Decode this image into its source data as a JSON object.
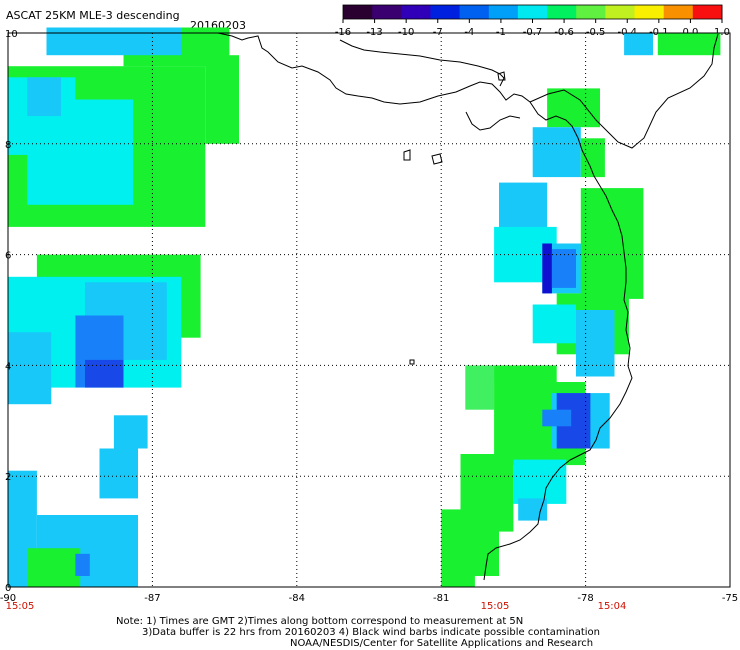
{
  "header": {
    "title": "ASCAT 25KM MLE-3 descending",
    "date": "20160203"
  },
  "colorbar": {
    "ticks": [
      "-16",
      "-13",
      "-10",
      "-7",
      "-4",
      "-1",
      "-0.7",
      "-0.6",
      "-0.5",
      "-0.4",
      "-0.1",
      "0.0",
      "1.0"
    ],
    "colors": [
      "#2a0030",
      "#3a0070",
      "#3000b8",
      "#0020e0",
      "#0060f0",
      "#00a0f8",
      "#00e8f0",
      "#00f060",
      "#60f040",
      "#c0f020",
      "#f8f000",
      "#f89000",
      "#f81010"
    ]
  },
  "axes": {
    "lon_labels": [
      "-90",
      "-87",
      "-84",
      "-81",
      "-78",
      "-75"
    ],
    "lat_labels": [
      "0",
      "2",
      "4",
      "6",
      "8",
      "10"
    ]
  },
  "times": [
    "15:05",
    "15:05",
    "15:04"
  ],
  "palette": {
    "green": "#18f030",
    "ltgreen": "#40f060",
    "cyan": "#00f0f0",
    "aqua": "#10e0e8",
    "sky": "#18c8f8",
    "blue": "#1880f8",
    "dblue": "#1848e8",
    "navy": "#1010d0"
  },
  "map_data": {
    "lon_range": [
      -90,
      -75
    ],
    "lat_range": [
      0,
      10
    ],
    "cell": 0.25,
    "blocks": [
      {
        "lon": [
          -87.6,
          -85.4
        ],
        "lat": [
          9.4,
          10.1
        ],
        "c": "green"
      },
      {
        "lon": [
          -89.2,
          -86.4
        ],
        "lat": [
          9.6,
          10.1
        ],
        "c": "sky"
      },
      {
        "lon": [
          -90.0,
          -85.9
        ],
        "lat": [
          6.5,
          9.4
        ],
        "c": "green"
      },
      {
        "lon": [
          -85.9,
          -85.2
        ],
        "lat": [
          8.0,
          9.6
        ],
        "c": "green"
      },
      {
        "lon": [
          -89.6,
          -87.4
        ],
        "lat": [
          6.9,
          8.8
        ],
        "c": "cyan"
      },
      {
        "lon": [
          -90.0,
          -88.6
        ],
        "lat": [
          7.8,
          9.2
        ],
        "c": "cyan"
      },
      {
        "lon": [
          -89.6,
          -88.9
        ],
        "lat": [
          8.5,
          9.2
        ],
        "c": "sky"
      },
      {
        "lon": [
          -89.4,
          -86.0
        ],
        "lat": [
          4.5,
          6.0
        ],
        "c": "green"
      },
      {
        "lon": [
          -90.0,
          -86.4
        ],
        "lat": [
          3.6,
          5.6
        ],
        "c": "cyan"
      },
      {
        "lon": [
          -88.4,
          -86.7
        ],
        "lat": [
          4.1,
          5.5
        ],
        "c": "sky"
      },
      {
        "lon": [
          -88.6,
          -87.6
        ],
        "lat": [
          3.6,
          4.9
        ],
        "c": "blue"
      },
      {
        "lon": [
          -88.4,
          -87.6
        ],
        "lat": [
          3.6,
          4.1
        ],
        "c": "dblue"
      },
      {
        "lon": [
          -90.0,
          -89.1
        ],
        "lat": [
          3.3,
          4.6
        ],
        "c": "sky"
      },
      {
        "lon": [
          -87.8,
          -87.1
        ],
        "lat": [
          2.5,
          3.1
        ],
        "c": "sky"
      },
      {
        "lon": [
          -88.1,
          -87.3
        ],
        "lat": [
          1.6,
          2.5
        ],
        "c": "sky"
      },
      {
        "lon": [
          -90.0,
          -89.4
        ],
        "lat": [
          0.0,
          2.1
        ],
        "c": "sky"
      },
      {
        "lon": [
          -89.4,
          -87.3
        ],
        "lat": [
          0.0,
          1.3
        ],
        "c": "sky"
      },
      {
        "lon": [
          -89.6,
          -88.5
        ],
        "lat": [
          0.0,
          0.7
        ],
        "c": "green"
      },
      {
        "lon": [
          -88.6,
          -88.3
        ],
        "lat": [
          0.2,
          0.6
        ],
        "c": "blue"
      },
      {
        "lon": [
          -78.8,
          -77.7
        ],
        "lat": [
          8.3,
          9.0
        ],
        "c": "green"
      },
      {
        "lon": [
          -79.1,
          -78.1
        ],
        "lat": [
          7.4,
          8.3
        ],
        "c": "sky"
      },
      {
        "lon": [
          -78.1,
          -77.6
        ],
        "lat": [
          7.4,
          8.1
        ],
        "c": "green"
      },
      {
        "lon": [
          -79.8,
          -78.8
        ],
        "lat": [
          6.3,
          7.3
        ],
        "c": "sky"
      },
      {
        "lon": [
          -79.9,
          -78.6
        ],
        "lat": [
          5.5,
          6.5
        ],
        "c": "cyan"
      },
      {
        "lon": [
          -78.9,
          -77.5
        ],
        "lat": [
          5.3,
          6.2
        ],
        "c": "sky"
      },
      {
        "lon": [
          -78.9,
          -78.7
        ],
        "lat": [
          5.3,
          6.2
        ],
        "c": "navy"
      },
      {
        "lon": [
          -78.7,
          -78.2
        ],
        "lat": [
          5.4,
          6.1
        ],
        "c": "blue"
      },
      {
        "lon": [
          -78.1,
          -76.8
        ],
        "lat": [
          5.2,
          7.2
        ],
        "c": "green"
      },
      {
        "lon": [
          -78.6,
          -77.1
        ],
        "lat": [
          4.2,
          5.3
        ],
        "c": "green"
      },
      {
        "lon": [
          -79.1,
          -78.2
        ],
        "lat": [
          4.4,
          5.1
        ],
        "c": "cyan"
      },
      {
        "lon": [
          -78.2,
          -77.4
        ],
        "lat": [
          3.8,
          5.0
        ],
        "c": "sky"
      },
      {
        "lon": [
          -80.0,
          -78.6
        ],
        "lat": [
          3.7,
          4.0
        ],
        "c": "green"
      },
      {
        "lon": [
          -80.5,
          -79.9
        ],
        "lat": [
          3.2,
          4.0
        ],
        "c": "ltgreen"
      },
      {
        "lon": [
          -79.9,
          -78.0
        ],
        "lat": [
          2.2,
          3.7
        ],
        "c": "green"
      },
      {
        "lon": [
          -78.7,
          -77.5
        ],
        "lat": [
          2.5,
          3.5
        ],
        "c": "sky"
      },
      {
        "lon": [
          -78.6,
          -77.9
        ],
        "lat": [
          2.5,
          3.5
        ],
        "c": "dblue"
      },
      {
        "lon": [
          -78.9,
          -78.3
        ],
        "lat": [
          2.9,
          3.2
        ],
        "c": "blue"
      },
      {
        "lon": [
          -80.6,
          -79.5
        ],
        "lat": [
          1.0,
          2.4
        ],
        "c": "green"
      },
      {
        "lon": [
          -79.5,
          -78.4
        ],
        "lat": [
          1.5,
          2.3
        ],
        "c": "cyan"
      },
      {
        "lon": [
          -79.4,
          -78.8
        ],
        "lat": [
          1.2,
          1.6
        ],
        "c": "sky"
      },
      {
        "lon": [
          -81.0,
          -80.3
        ],
        "lat": [
          0.0,
          1.4
        ],
        "c": "green"
      },
      {
        "lon": [
          -80.6,
          -79.8
        ],
        "lat": [
          0.2,
          1.1
        ],
        "c": "green"
      },
      {
        "lon": [
          -77.2,
          -76.6
        ],
        "lat": [
          9.6,
          10.0
        ],
        "c": "sky"
      },
      {
        "lon": [
          -76.5,
          -75.2
        ],
        "lat": [
          9.6,
          10.0
        ],
        "c": "green"
      }
    ]
  },
  "footnote": {
    "line1": "Note: 1) Times are GMT 2)Times along bottom correspond to measurement at 5N",
    "line2": "3)Data buffer is 22 hrs from 20160203 4) Black wind barbs indicate possible contamination",
    "line3": "NOAA/NESDIS/Center for Satellite Applications and Research"
  }
}
